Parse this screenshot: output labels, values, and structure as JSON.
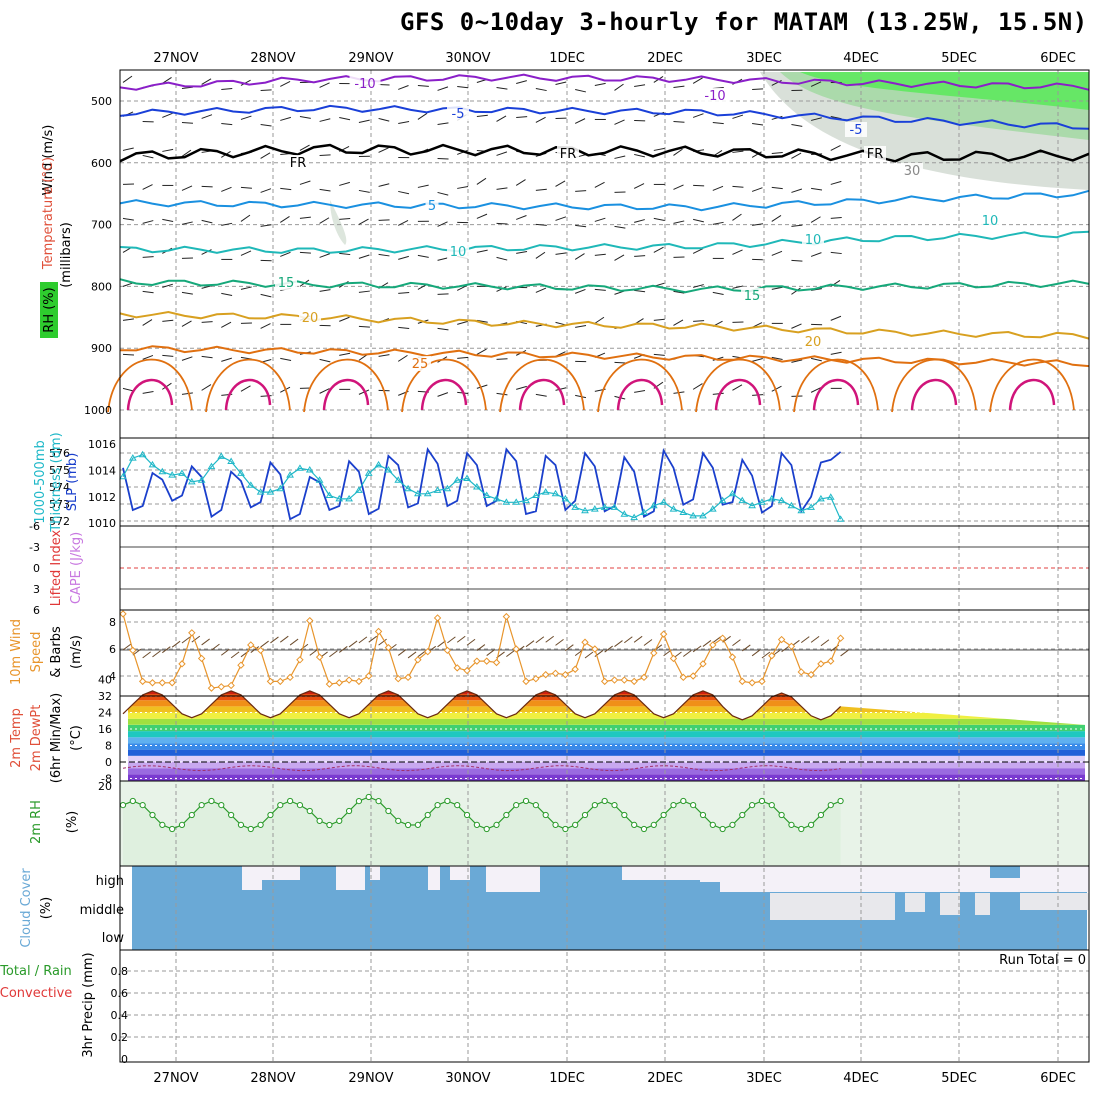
{
  "title": "GFS 0~10day 3-hourly for MATAM (13.25W, 15.5N)",
  "chart_data": {
    "type": "meteogram",
    "days": [
      "27NOV",
      "28NOV",
      "29NOV",
      "30NOV",
      "1DEC",
      "2DEC",
      "3DEC",
      "4DEC",
      "5DEC",
      "6DEC"
    ],
    "panels": [
      {
        "id": "upper-air",
        "labels": [
          "Wind (m/s)",
          "Temperature (°C)",
          "RH (%)",
          "(millibars)"
        ],
        "yticks": [
          500,
          600,
          700,
          800,
          900,
          1000
        ],
        "contours": [
          {
            "label": "-10",
            "level_mb": [
              478,
              465,
              462,
              465,
              472,
              477
            ]
          },
          {
            "label": "-5",
            "level_mb": [
              520,
              512,
              515,
              518,
              530,
              542
            ]
          },
          {
            "label": "FR",
            "level_mb": [
              590,
              578,
              580,
              582,
              590,
              588
            ]
          },
          {
            "label": "5",
            "level_mb": [
              665,
              668,
              670,
              672,
              660,
              650
            ]
          },
          {
            "label": "10",
            "level_mb": [
              740,
              742,
              738,
              735,
              722,
              715
            ]
          },
          {
            "label": "15",
            "level_mb": [
              793,
              797,
              800,
              805,
              800,
              795
            ]
          },
          {
            "label": "20",
            "level_mb": [
              845,
              850,
              860,
              865,
              875,
              880
            ]
          },
          {
            "label": "25",
            "level_mb": [
              900,
              905,
              910,
              915,
              920,
              925
            ]
          }
        ],
        "contour_labels": [
          "-10",
          "-10",
          "-5",
          "-5",
          "FR",
          "FR",
          "FR",
          "5",
          "10",
          "10",
          "10",
          "15",
          "15",
          "20",
          "20",
          "25",
          "30"
        ]
      },
      {
        "id": "slp-thickness",
        "labels": [
          "1000-500mb",
          "Thickness (dm)",
          "SLP (mb)"
        ],
        "yticks_left": [
          576,
          575,
          574,
          573,
          572
        ],
        "yticks_right": [
          1016,
          1014,
          1012,
          1010
        ],
        "slp_mb": [
          1014.2,
          1011.0,
          1011.3,
          1013.8,
          1013.3,
          1011.7,
          1012.1,
          1014.3,
          1013.5,
          1010.5,
          1011.0,
          1013.9,
          1013.2,
          1011.2,
          1011.6,
          1014.6,
          1013.7,
          1010.3,
          1010.7,
          1013.5,
          1013.1,
          1011.0,
          1011.3,
          1014.7,
          1013.9,
          1010.7,
          1011.1,
          1015.1,
          1014.4,
          1011.2,
          1011.5,
          1015.6,
          1014.5,
          1011.3,
          1011.7,
          1015.3,
          1014.4,
          1011.3,
          1011.7,
          1015.6,
          1014.7,
          1010.7,
          1010.9,
          1015.1,
          1014.4,
          1011.0,
          1011.7,
          1015.3,
          1014.3,
          1010.9,
          1011.3,
          1015.0,
          1013.9,
          1010.5,
          1010.9,
          1015.5,
          1014.2,
          1011.4,
          1011.8,
          1015.3,
          1014.2,
          1011.4,
          1011.6,
          1014.8,
          1013.6,
          1010.8,
          1011.3,
          1015.3,
          1014.4,
          1010.9,
          1012.0,
          1014.6,
          1014.8,
          1015.4
        ],
        "thickness_dm": [
          574.6,
          575.7,
          575.9,
          575.3,
          574.9,
          574.7,
          574.8,
          574.3,
          574.4,
          575.2,
          575.8,
          575.5,
          574.8,
          574.1,
          573.7,
          573.7,
          573.9,
          574.7,
          575.1,
          575.0,
          574.4,
          573.5,
          573.3,
          573.3,
          573.8,
          574.8,
          575.3,
          575.0,
          574.4,
          573.9,
          573.6,
          573.6,
          573.8,
          573.9,
          574.4,
          574.5,
          574.0,
          573.5,
          573.3,
          573.1,
          573.1,
          573.2,
          573.5,
          573.7,
          573.6,
          573.3,
          572.8,
          572.6,
          572.7,
          572.8,
          572.8,
          572.4,
          572.2,
          572.5,
          572.9,
          573.1,
          572.7,
          572.5,
          572.3,
          572.3,
          572.7,
          573.2,
          573.6,
          573.2,
          572.9,
          573.1,
          573.3,
          573.2,
          572.9,
          572.6,
          572.8,
          573.3,
          573.4,
          572.1
        ]
      },
      {
        "id": "lifted-cape",
        "labels": [
          "Lifted Index",
          "CAPE (J/kg)"
        ],
        "yticks": [
          -6,
          -3,
          0,
          3,
          6
        ]
      },
      {
        "id": "wind10m",
        "labels": [
          "10m Wind",
          "Speed",
          "& Barbs",
          "(m/s)"
        ],
        "yticks": [
          4,
          6,
          8
        ],
        "speed_ms": [
          8.6,
          5.9,
          3.6,
          3.5,
          3.5,
          3.5,
          4.9,
          7.2,
          5.3,
          3.1,
          3.2,
          3.3,
          4.8,
          6.3,
          5.9,
          3.6,
          3.6,
          3.9,
          5.2,
          8.1,
          5.4,
          3.4,
          3.5,
          3.7,
          3.6,
          4.0,
          7.3,
          6.1,
          3.8,
          3.9,
          5.2,
          5.8,
          8.3,
          5.9,
          4.6,
          4.4,
          5.1,
          5.1,
          5.0,
          8.4,
          6.0,
          3.6,
          3.8,
          4.1,
          4.2,
          4.1,
          4.5,
          6.5,
          6.0,
          3.6,
          3.7,
          3.7,
          3.6,
          3.9,
          5.7,
          7.1,
          5.3,
          3.9,
          4.0,
          4.9,
          6.3,
          6.8,
          5.4,
          3.6,
          3.5,
          3.6,
          5.5,
          6.7,
          6.2,
          4.3,
          4.1,
          4.9,
          5.1,
          6.8
        ]
      },
      {
        "id": "temp2m",
        "labels": [
          "2m Temp",
          "2m DewPt",
          "(6hr Min/Max)",
          "(°C)"
        ],
        "yticks": [
          40,
          32,
          24,
          16,
          8,
          0,
          -8
        ]
      },
      {
        "id": "rh2m",
        "labels": [
          "2m RH",
          "(%)"
        ],
        "yticks": [
          20
        ]
      },
      {
        "id": "cloud",
        "labels": [
          "Cloud Cover",
          "(%)"
        ],
        "levels": [
          "high",
          "middle",
          "low"
        ]
      },
      {
        "id": "precip",
        "labels": [
          "Total / Rain",
          "Convective",
          "3hr Precip (mm)"
        ],
        "yticks": [
          "0.8",
          "0.6",
          "0.4",
          "0.2",
          "0"
        ],
        "run_total": "Run Total = 0"
      }
    ]
  },
  "colors": {
    "slp": "#1a3fcc",
    "thickness": "#1fb8c8",
    "wind": "#e8952c",
    "rh": "#2a9a2a",
    "cloud": "#6aa9d6",
    "temp_label": "#e0503a",
    "cape_label": "#c878e0",
    "lifted_label": "#e03838"
  }
}
